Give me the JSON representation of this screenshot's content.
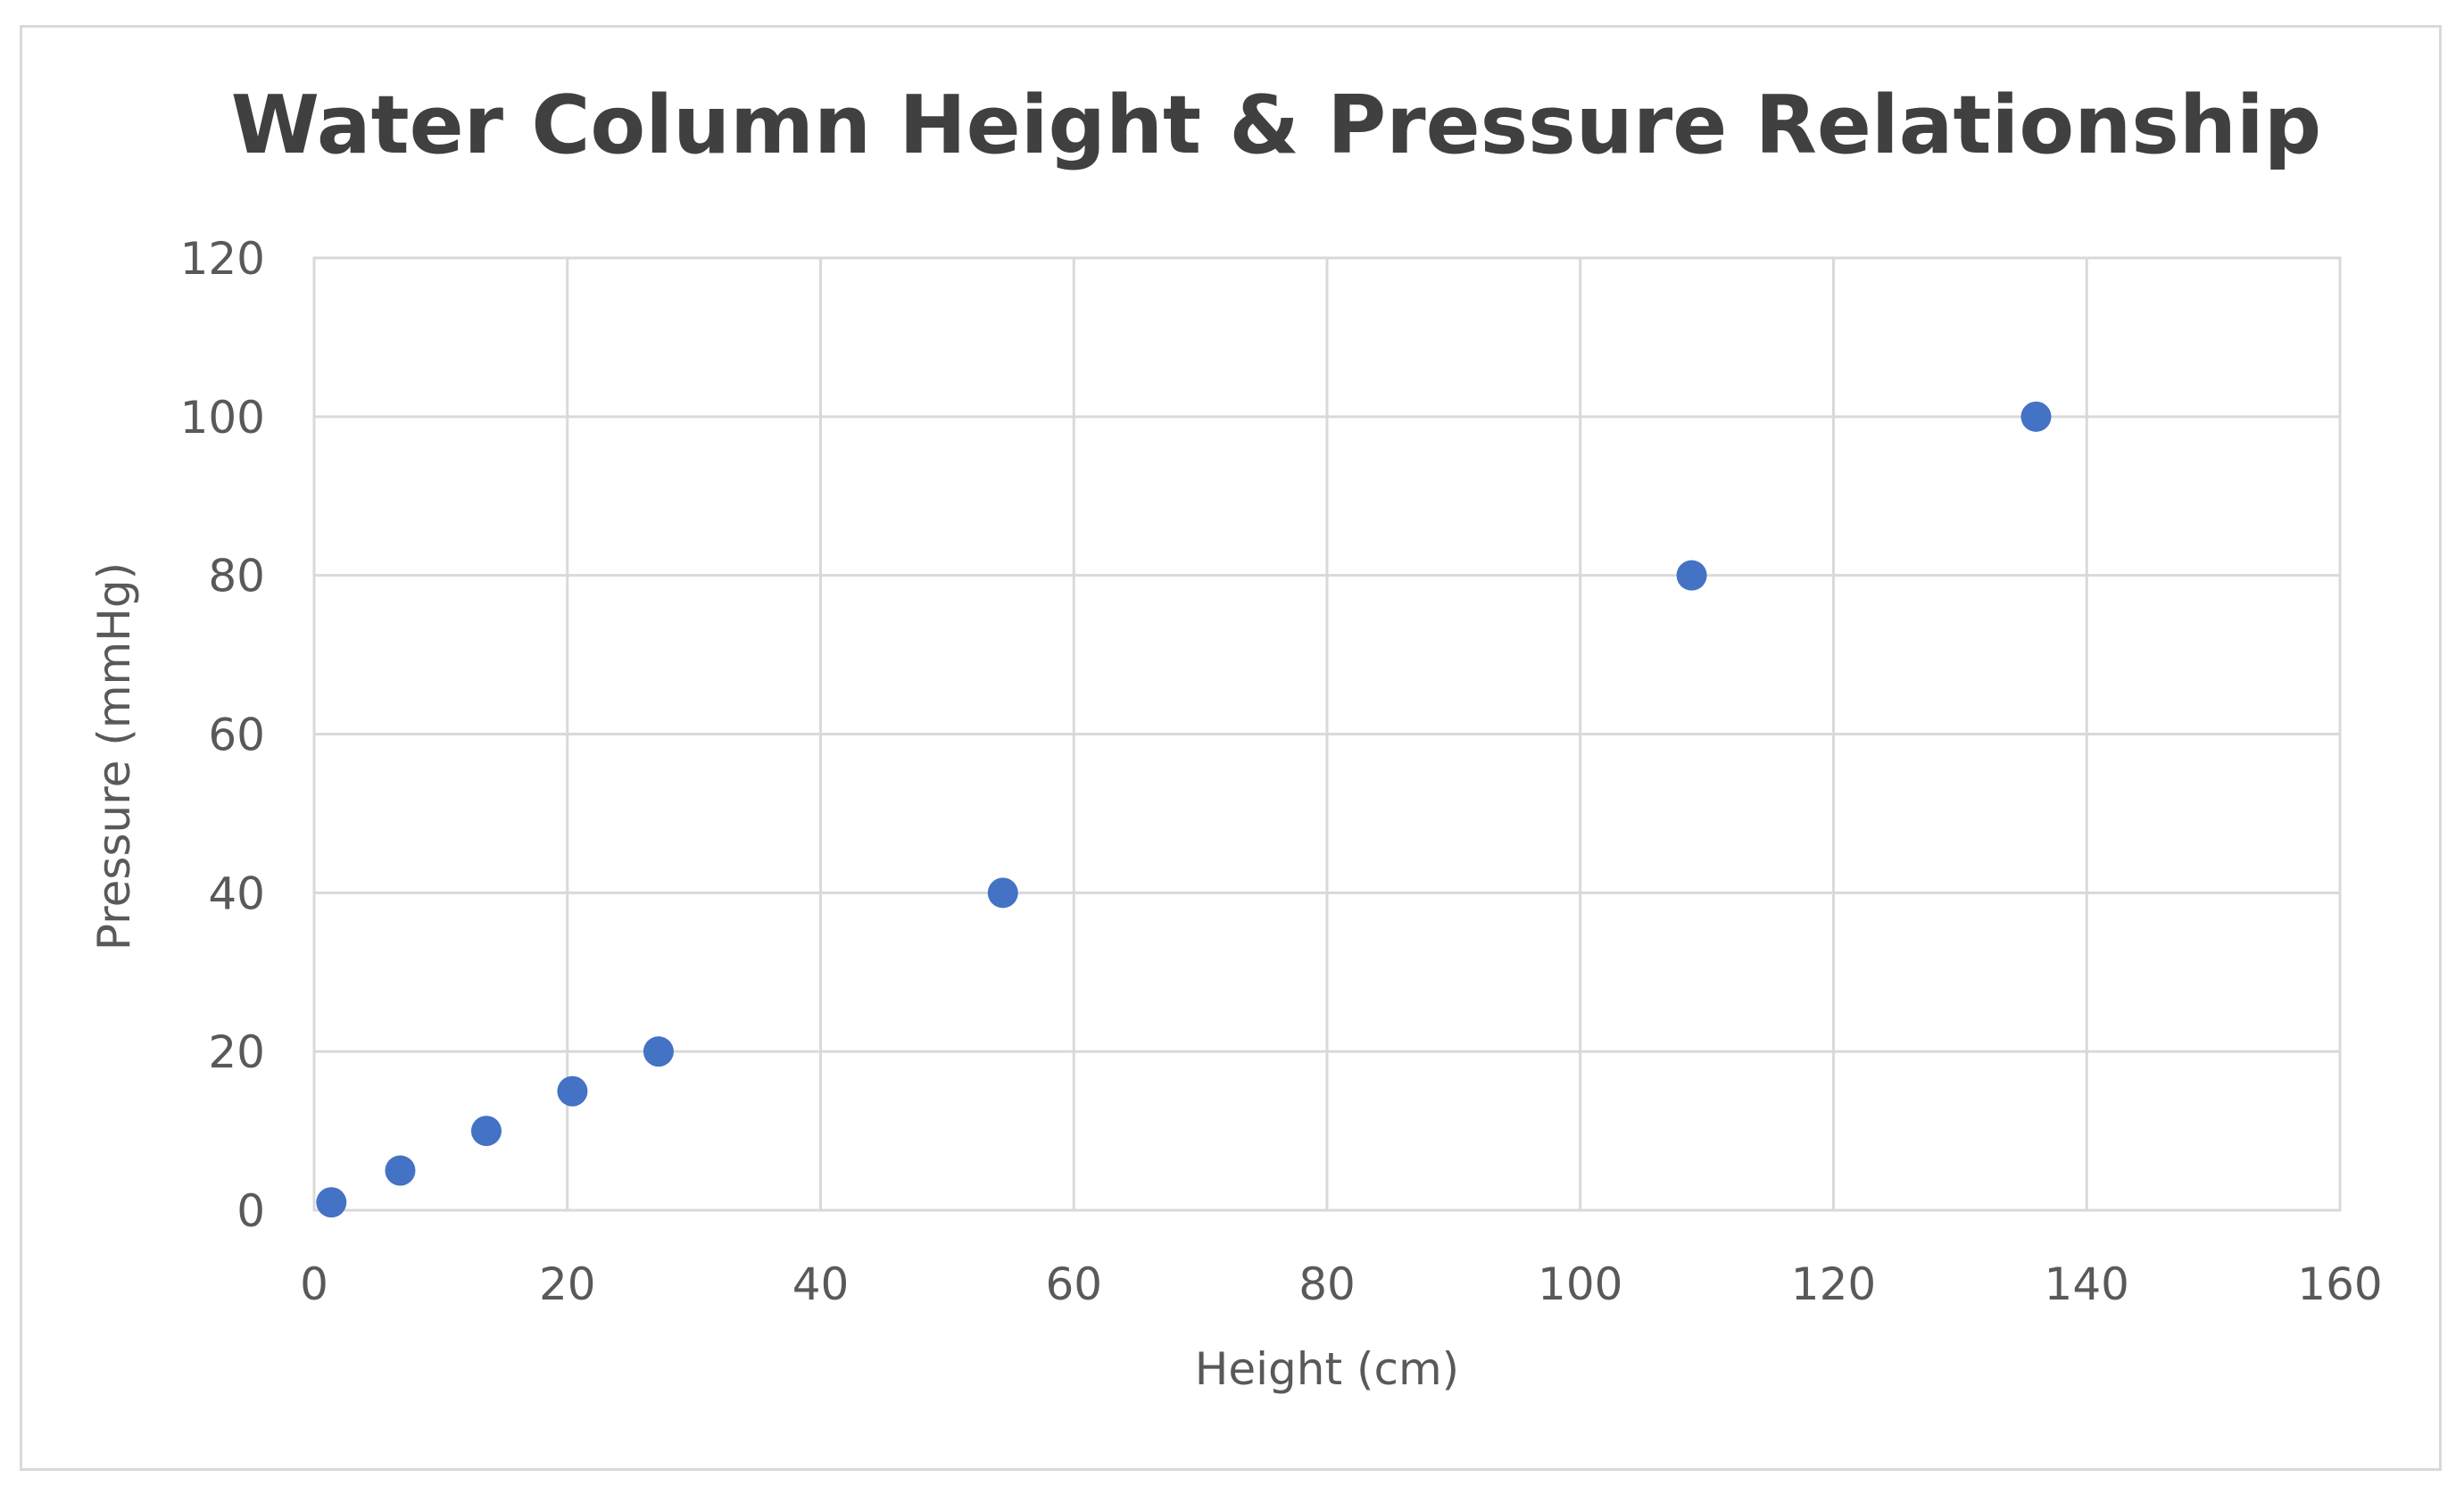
{
  "chart_data": {
    "type": "scatter",
    "title": "Water Column Height & Pressure Relationship",
    "xlabel": "Height (cm)",
    "ylabel": "Pressure (mmHg)",
    "xlim": [
      0,
      160
    ],
    "ylim": [
      0,
      120
    ],
    "x_ticks": [
      0,
      20,
      40,
      60,
      80,
      100,
      120,
      140,
      160
    ],
    "y_ticks": [
      0,
      20,
      40,
      60,
      80,
      100,
      120
    ],
    "x_tick_labels": [
      "0",
      "20",
      "40",
      "60",
      "80",
      "100",
      "120",
      "140",
      "160"
    ],
    "y_tick_labels": [
      "0",
      "20",
      "40",
      "60",
      "80",
      "100",
      "120"
    ],
    "grid": true,
    "legend": "none",
    "marker_color": "#4472C4",
    "series": [
      {
        "x": [
          1.36,
          6.8,
          13.6,
          20.4,
          27.2,
          54.4,
          108.8,
          136
        ],
        "y": [
          1,
          5,
          10,
          15,
          20,
          40,
          80,
          100
        ]
      }
    ]
  }
}
